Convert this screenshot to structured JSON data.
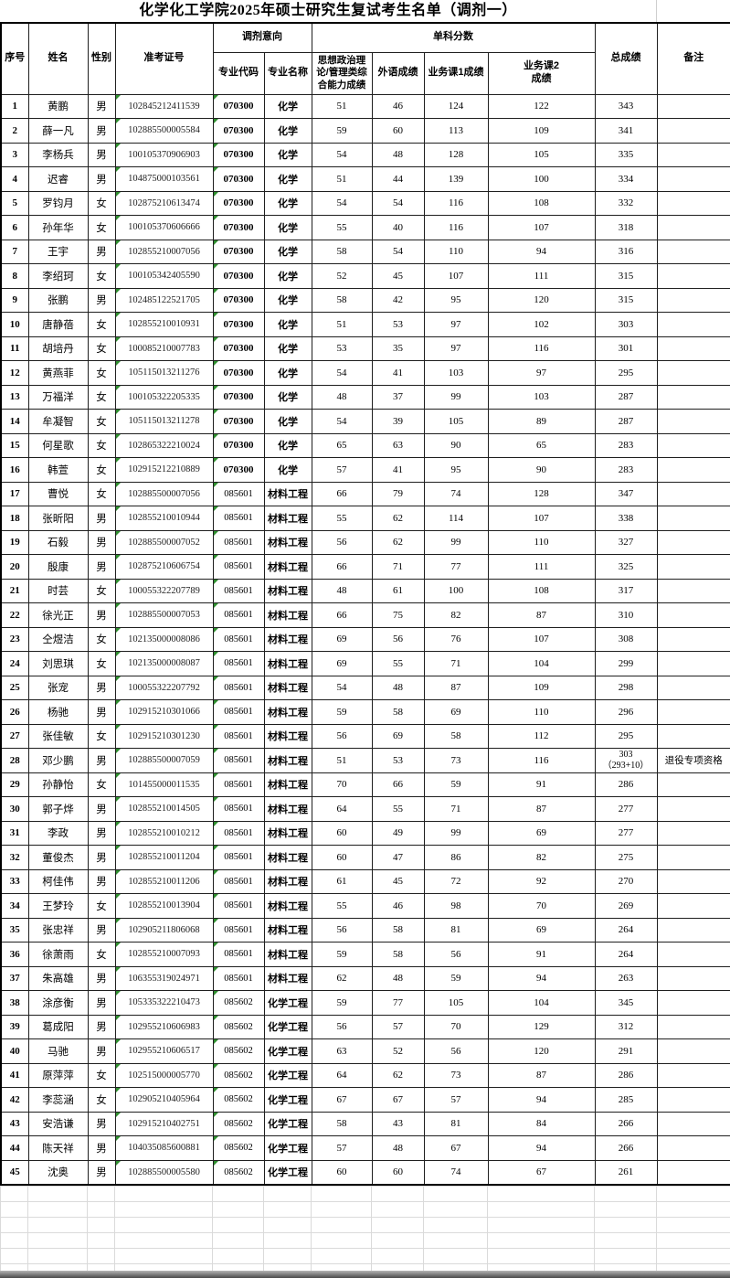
{
  "title": "化学化工学院2025年硕士研究生复试考生名单（调剂一）",
  "header": {
    "xuhao": "序号",
    "xingming": "姓名",
    "xingbie": "性别",
    "zhunkaozhenghao": "准考证号",
    "tiaoji_yixiang": "调剂意向",
    "zhuanye_daima": "专业代码",
    "zhuanye_mingcheng": "专业名称",
    "danke_fenshu": "单科分数",
    "sixiang_zhengzhi": "思想政治理论/管理类综合能力成绩",
    "waiyu_chengji": "外语成绩",
    "yewuke1_chengji": "业务课1成绩",
    "yewuke2_chengji": "业务课2\n成绩",
    "zongchengji": "总成绩",
    "beizhu": "备注"
  },
  "columns": [
    "序号",
    "姓名",
    "性别",
    "准考证号",
    "专业代码",
    "专业名称",
    "思想政治理论/管理类综合能力成绩",
    "外语成绩",
    "业务课1成绩",
    "业务课2成绩",
    "总成绩",
    "备注"
  ],
  "accent_colors": {
    "green_corner_marker": "#2f8f2f",
    "grid_line": "#1f1f1f",
    "empty_grid_line": "#dadada"
  },
  "rows": [
    [
      "1",
      "黄鹏",
      "男",
      "102845212411539",
      "070300",
      "化学",
      "51",
      "46",
      "124",
      "122",
      "343",
      ""
    ],
    [
      "2",
      "薛一凡",
      "男",
      "102885500005584",
      "070300",
      "化学",
      "59",
      "60",
      "113",
      "109",
      "341",
      ""
    ],
    [
      "3",
      "李杨兵",
      "男",
      "100105370906903",
      "070300",
      "化学",
      "54",
      "48",
      "128",
      "105",
      "335",
      ""
    ],
    [
      "4",
      "迟睿",
      "男",
      "104875000103561",
      "070300",
      "化学",
      "51",
      "44",
      "139",
      "100",
      "334",
      ""
    ],
    [
      "5",
      "罗钧月",
      "女",
      "102875210613474",
      "070300",
      "化学",
      "54",
      "54",
      "116",
      "108",
      "332",
      ""
    ],
    [
      "6",
      "孙年华",
      "女",
      "100105370606666",
      "070300",
      "化学",
      "55",
      "40",
      "116",
      "107",
      "318",
      ""
    ],
    [
      "7",
      "王宇",
      "男",
      "102855210007056",
      "070300",
      "化学",
      "58",
      "54",
      "110",
      "94",
      "316",
      ""
    ],
    [
      "8",
      "李绍珂",
      "女",
      "100105342405590",
      "070300",
      "化学",
      "52",
      "45",
      "107",
      "111",
      "315",
      ""
    ],
    [
      "9",
      "张鹏",
      "男",
      "102485122521705",
      "070300",
      "化学",
      "58",
      "42",
      "95",
      "120",
      "315",
      ""
    ],
    [
      "10",
      "唐静蓓",
      "女",
      "102855210010931",
      "070300",
      "化学",
      "51",
      "53",
      "97",
      "102",
      "303",
      ""
    ],
    [
      "11",
      "胡培丹",
      "女",
      "100085210007783",
      "070300",
      "化学",
      "53",
      "35",
      "97",
      "116",
      "301",
      ""
    ],
    [
      "12",
      "黄燕菲",
      "女",
      "105115013211276",
      "070300",
      "化学",
      "54",
      "41",
      "103",
      "97",
      "295",
      ""
    ],
    [
      "13",
      "万福洋",
      "女",
      "100105322205335",
      "070300",
      "化学",
      "48",
      "37",
      "99",
      "103",
      "287",
      ""
    ],
    [
      "14",
      "牟凝智",
      "女",
      "105115013211278",
      "070300",
      "化学",
      "54",
      "39",
      "105",
      "89",
      "287",
      ""
    ],
    [
      "15",
      "何星歌",
      "女",
      "102865322210024",
      "070300",
      "化学",
      "65",
      "63",
      "90",
      "65",
      "283",
      ""
    ],
    [
      "16",
      "韩萱",
      "女",
      "102915212210889",
      "070300",
      "化学",
      "57",
      "41",
      "95",
      "90",
      "283",
      ""
    ],
    [
      "17",
      "曹悦",
      "女",
      "102885500007056",
      "085601",
      "材料工程",
      "66",
      "79",
      "74",
      "128",
      "347",
      ""
    ],
    [
      "18",
      "张昕阳",
      "男",
      "102855210010944",
      "085601",
      "材料工程",
      "55",
      "62",
      "114",
      "107",
      "338",
      ""
    ],
    [
      "19",
      "石毅",
      "男",
      "102885500007052",
      "085601",
      "材料工程",
      "56",
      "62",
      "99",
      "110",
      "327",
      ""
    ],
    [
      "20",
      "殷康",
      "男",
      "102875210606754",
      "085601",
      "材料工程",
      "66",
      "71",
      "77",
      "111",
      "325",
      ""
    ],
    [
      "21",
      "时芸",
      "女",
      "100055322207789",
      "085601",
      "材料工程",
      "48",
      "61",
      "100",
      "108",
      "317",
      ""
    ],
    [
      "22",
      "徐光正",
      "男",
      "102885500007053",
      "085601",
      "材料工程",
      "66",
      "75",
      "82",
      "87",
      "310",
      ""
    ],
    [
      "23",
      "仝煜洁",
      "女",
      "102135000008086",
      "085601",
      "材料工程",
      "69",
      "56",
      "76",
      "107",
      "308",
      ""
    ],
    [
      "24",
      "刘思琪",
      "女",
      "102135000008087",
      "085601",
      "材料工程",
      "69",
      "55",
      "71",
      "104",
      "299",
      ""
    ],
    [
      "25",
      "张宠",
      "男",
      "100055322207792",
      "085601",
      "材料工程",
      "54",
      "48",
      "87",
      "109",
      "298",
      ""
    ],
    [
      "26",
      "杨驰",
      "男",
      "102915210301066",
      "085601",
      "材料工程",
      "59",
      "58",
      "69",
      "110",
      "296",
      ""
    ],
    [
      "27",
      "张佳敏",
      "女",
      "102915210301230",
      "085601",
      "材料工程",
      "56",
      "69",
      "58",
      "112",
      "295",
      ""
    ],
    [
      "28",
      "邓少鹏",
      "男",
      "102885500007059",
      "085601",
      "材料工程",
      "51",
      "53",
      "73",
      "116",
      "303\n（293+10）",
      "退役专项资格"
    ],
    [
      "29",
      "孙静怡",
      "女",
      "101455000011535",
      "085601",
      "材料工程",
      "70",
      "66",
      "59",
      "91",
      "286",
      ""
    ],
    [
      "30",
      "郭子烨",
      "男",
      "102855210014505",
      "085601",
      "材料工程",
      "64",
      "55",
      "71",
      "87",
      "277",
      ""
    ],
    [
      "31",
      "李政",
      "男",
      "102855210010212",
      "085601",
      "材料工程",
      "60",
      "49",
      "99",
      "69",
      "277",
      ""
    ],
    [
      "32",
      "董俊杰",
      "男",
      "102855210011204",
      "085601",
      "材料工程",
      "60",
      "47",
      "86",
      "82",
      "275",
      ""
    ],
    [
      "33",
      "柯佳伟",
      "男",
      "102855210011206",
      "085601",
      "材料工程",
      "61",
      "45",
      "72",
      "92",
      "270",
      ""
    ],
    [
      "34",
      "王梦玲",
      "女",
      "102855210013904",
      "085601",
      "材料工程",
      "55",
      "46",
      "98",
      "70",
      "269",
      ""
    ],
    [
      "35",
      "张忠祥",
      "男",
      "102905211806068",
      "085601",
      "材料工程",
      "56",
      "58",
      "81",
      "69",
      "264",
      ""
    ],
    [
      "36",
      "徐萧雨",
      "女",
      "102855210007093",
      "085601",
      "材料工程",
      "59",
      "58",
      "56",
      "91",
      "264",
      ""
    ],
    [
      "37",
      "朱高雄",
      "男",
      "106355319024971",
      "085601",
      "材料工程",
      "62",
      "48",
      "59",
      "94",
      "263",
      ""
    ],
    [
      "38",
      "涂彦衡",
      "男",
      "105335322210473",
      "085602",
      "化学工程",
      "59",
      "77",
      "105",
      "104",
      "345",
      ""
    ],
    [
      "39",
      "葛成阳",
      "男",
      "102955210606983",
      "085602",
      "化学工程",
      "56",
      "57",
      "70",
      "129",
      "312",
      ""
    ],
    [
      "40",
      "马驰",
      "男",
      "102955210606517",
      "085602",
      "化学工程",
      "63",
      "52",
      "56",
      "120",
      "291",
      ""
    ],
    [
      "41",
      "原萍萍",
      "女",
      "102515000005770",
      "085602",
      "化学工程",
      "64",
      "62",
      "73",
      "87",
      "286",
      ""
    ],
    [
      "42",
      "李蕊涵",
      "女",
      "102905210405964",
      "085602",
      "化学工程",
      "67",
      "67",
      "57",
      "94",
      "285",
      ""
    ],
    [
      "43",
      "安浩谦",
      "男",
      "102915210402751",
      "085602",
      "化学工程",
      "58",
      "43",
      "81",
      "84",
      "266",
      ""
    ],
    [
      "44",
      "陈天祥",
      "男",
      "104035085600881",
      "085602",
      "化学工程",
      "57",
      "48",
      "67",
      "94",
      "266",
      ""
    ],
    [
      "45",
      "沈奥",
      "男",
      "102885500005580",
      "085602",
      "化学工程",
      "60",
      "60",
      "74",
      "67",
      "261",
      ""
    ]
  ]
}
